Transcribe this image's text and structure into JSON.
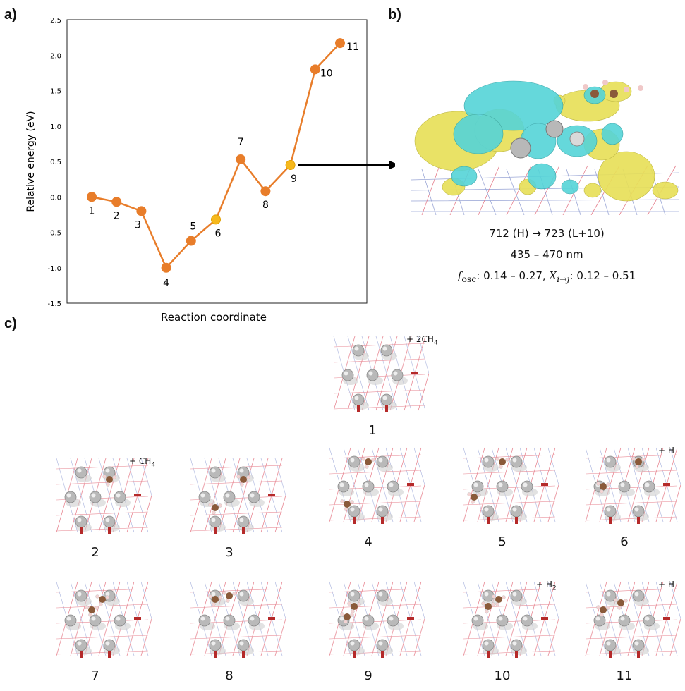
{
  "panels": {
    "a": "a)",
    "b": "b)",
    "c": "c)"
  },
  "chart_data": {
    "type": "line",
    "xlabel": "Reaction coordinate",
    "ylabel": "Relative energy (eV)",
    "ylim": [
      -1.5,
      2.5
    ],
    "yticks": [
      "-1.5",
      "-1.0",
      "-0.5",
      "0.0",
      "0.5",
      "1.0",
      "1.5",
      "2.0",
      "2.5"
    ],
    "grid": false,
    "colors": {
      "line": "#e87d2a",
      "marker": "#e87d2a",
      "highlight": "#f6b81c"
    },
    "x": [
      1,
      2,
      3,
      4,
      5,
      6,
      7,
      8,
      9,
      10,
      11
    ],
    "point_labels": [
      "1",
      "2",
      "3",
      "4",
      "5",
      "6",
      "7",
      "8",
      "9",
      "10",
      "11"
    ],
    "values": [
      0.0,
      -0.07,
      -0.2,
      -1.0,
      -0.62,
      -0.32,
      0.53,
      0.08,
      0.45,
      1.8,
      2.17
    ],
    "highlighted_points": [
      6,
      9
    ]
  },
  "orbital": {
    "transition": "712 (H) → 723 (L+10)",
    "wavelength": "435 – 470 nm",
    "fosc_symbol": "f",
    "fosc_sub": "osc",
    "fosc_range": ": 0.14 – 0.27, ",
    "x_symbol": "X",
    "x_sub": "i→j",
    "x_range": ": 0.12 – 0.51",
    "colors": {
      "yellow": "#e8e05a",
      "cyan": "#55d4d8",
      "carbon": "#8a5a3a",
      "metal": "#b8b8b8"
    }
  },
  "structures": [
    {
      "label": "1",
      "annotation": "+ 2CH",
      "annotation_sub": "4"
    },
    {
      "label": "2",
      "annotation": "+ CH",
      "annotation_sub": "4"
    },
    {
      "label": "3",
      "annotation": "",
      "annotation_sub": ""
    },
    {
      "label": "4",
      "annotation": "",
      "annotation_sub": ""
    },
    {
      "label": "5",
      "annotation": "",
      "annotation_sub": ""
    },
    {
      "label": "6",
      "annotation": "+ H",
      "annotation_sub": ""
    },
    {
      "label": "7",
      "annotation": "",
      "annotation_sub": ""
    },
    {
      "label": "8",
      "annotation": "",
      "annotation_sub": ""
    },
    {
      "label": "9",
      "annotation": "",
      "annotation_sub": ""
    },
    {
      "label": "10",
      "annotation": "+ H",
      "annotation_sub": "2"
    },
    {
      "label": "11",
      "annotation": "+ H",
      "annotation_sub": ""
    }
  ]
}
